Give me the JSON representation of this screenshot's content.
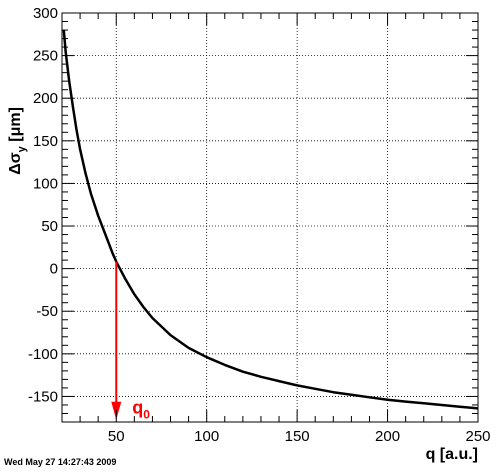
{
  "chart_data": {
    "type": "line",
    "x_label": "q [a.u.]",
    "y_label_parts": {
      "main": "Δσ",
      "subscript": "y",
      "unit": " [μm]"
    },
    "xlim": [
      20,
      250
    ],
    "ylim": [
      -180,
      300
    ],
    "x_ticks": [
      50,
      100,
      150,
      200,
      250
    ],
    "y_ticks": [
      -150,
      -100,
      -50,
      0,
      50,
      100,
      150,
      200,
      250,
      300
    ],
    "grid": true,
    "series": [
      {
        "color": "#000000",
        "x": [
          21,
          22,
          24,
          26,
          28,
          30,
          33,
          36,
          40,
          44,
          48,
          50,
          55,
          60,
          65,
          70,
          80,
          90,
          100,
          110,
          120,
          130,
          140,
          150,
          160,
          170,
          180,
          190,
          200,
          210,
          220,
          230,
          240,
          250
        ],
        "y": [
          280,
          255,
          220,
          190,
          163,
          140,
          112,
          88,
          62,
          40,
          18,
          8,
          -12,
          -30,
          -45,
          -58,
          -78,
          -93,
          -104,
          -113,
          -121,
          -127,
          -132,
          -137,
          -141,
          -145,
          -148,
          -151,
          -154,
          -156,
          -158,
          -160,
          -162,
          -164
        ]
      }
    ],
    "annotation": {
      "label": "q",
      "subscript": "0",
      "color": "#ff0000",
      "x": 50,
      "y_from": 8,
      "y_to": -175
    }
  },
  "footer_text": "Wed May 27 14:27:43 2009"
}
